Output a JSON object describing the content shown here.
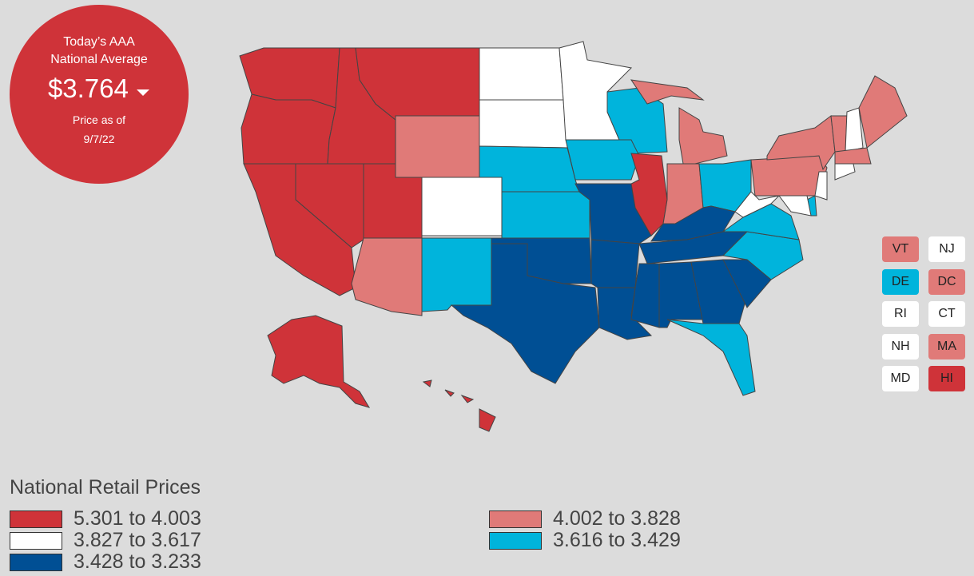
{
  "header": {
    "line1": "Today’s AAA",
    "line2": "National Average",
    "price": "$3.764",
    "asof_label": "Price as of",
    "asof_date": "9/7/22"
  },
  "legend": {
    "title": "National Retail Prices",
    "entries": [
      {
        "label": "5.301 to 4.003",
        "color": "#cf3339"
      },
      {
        "label": "4.002 to 3.828",
        "color": "#e07a78"
      },
      {
        "label": "3.827 to 3.617",
        "color": "#ffffff"
      },
      {
        "label": "3.616 to 3.429",
        "color": "#00b4dc"
      },
      {
        "label": "3.428 to 3.233",
        "color": "#004f94"
      }
    ]
  },
  "small_states": [
    {
      "label": "VT",
      "color": "#e07a78"
    },
    {
      "label": "NJ",
      "color": "#ffffff"
    },
    {
      "label": "DE",
      "color": "#00b4dc"
    },
    {
      "label": "DC",
      "color": "#e07a78"
    },
    {
      "label": "RI",
      "color": "#ffffff"
    },
    {
      "label": "CT",
      "color": "#ffffff"
    },
    {
      "label": "NH",
      "color": "#ffffff"
    },
    {
      "label": "MA",
      "color": "#e07a78"
    },
    {
      "label": "MD",
      "color": "#ffffff"
    },
    {
      "label": "HI",
      "color": "#cf3339"
    }
  ]
}
